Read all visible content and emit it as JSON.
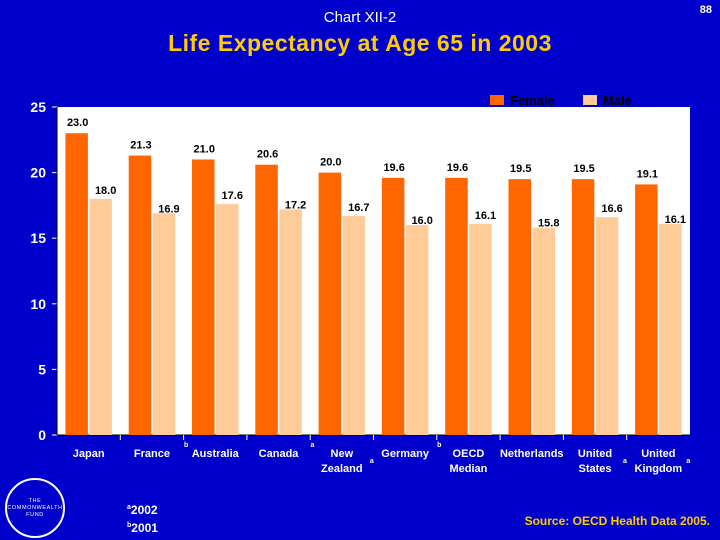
{
  "header": {
    "chart_label": "Chart XII-2",
    "page_number": "88",
    "title": "Life Expectancy at Age 65 in 2003"
  },
  "chart_data": {
    "type": "bar",
    "title": "Life Expectancy at Age 65 in 2003",
    "categories": [
      {
        "lines": [
          "Japan"
        ],
        "note": ""
      },
      {
        "lines": [
          "France"
        ],
        "note": "b"
      },
      {
        "lines": [
          "Australia"
        ],
        "note": ""
      },
      {
        "lines": [
          "Canada"
        ],
        "note": "a"
      },
      {
        "lines": [
          "New",
          "Zealand"
        ],
        "note": "a"
      },
      {
        "lines": [
          "Germany"
        ],
        "note": "b"
      },
      {
        "lines": [
          "OECD",
          "Median"
        ],
        "note": ""
      },
      {
        "lines": [
          "Netherlands"
        ],
        "note": ""
      },
      {
        "lines": [
          "United",
          "States"
        ],
        "note": "a"
      },
      {
        "lines": [
          "United",
          "Kingdom"
        ],
        "note": "a"
      }
    ],
    "series": [
      {
        "name": "Female",
        "color": "#ff6600",
        "values": [
          23.0,
          21.3,
          21.0,
          20.6,
          20.0,
          19.6,
          19.6,
          19.5,
          19.5,
          19.1
        ],
        "labels": [
          "23.0",
          "21.3",
          "21.0",
          "20.6",
          "20.0",
          "19.6",
          "19.6",
          "19.5",
          "19.5",
          "19.1"
        ]
      },
      {
        "name": "Male",
        "color": "#ffcc99",
        "values": [
          18.0,
          16.9,
          17.6,
          17.2,
          16.7,
          16.0,
          16.1,
          15.8,
          16.6,
          16.1
        ],
        "labels": [
          "18.0",
          "16.9",
          "17.6",
          "17.2",
          "16.7",
          "16.0",
          "16.1",
          "15.8",
          "16.6",
          "16.1"
        ]
      }
    ],
    "ylim": [
      0,
      25
    ],
    "yticks": [
      0,
      5,
      10,
      15,
      20,
      25
    ],
    "xlabel": "",
    "ylabel": "",
    "legend": "top-right",
    "grid": false,
    "plot_background": "#ffffff"
  },
  "logo": {
    "text": "THE COMMONWEALTH FUND"
  },
  "footnotes": [
    {
      "mark": "a",
      "text": "2002"
    },
    {
      "mark": "b",
      "text": "2001"
    }
  ],
  "source": "Source: OECD Health Data 2005."
}
